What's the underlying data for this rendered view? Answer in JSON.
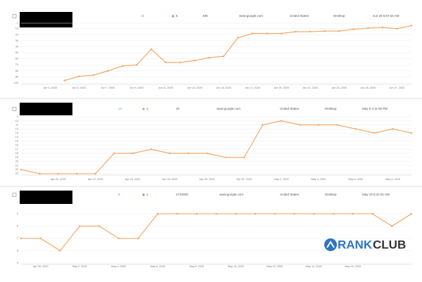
{
  "panels": [
    {
      "cells": [
        "13",
        "5",
        "480",
        "www.google.com",
        "United States",
        "Desktop",
        "Jun 28 6:57:54 AM"
      ]
    },
    {
      "cells": [
        "13",
        "1",
        "10",
        "www.google.com",
        "United States",
        "Desktop",
        "May 9 4:11:50 PM"
      ]
    },
    {
      "cells": [
        "8",
        "1",
        "2740000",
        "www.google.com",
        "United States",
        "Desktop",
        "May 19 5:41:51 AM"
      ]
    }
  ],
  "chart_data": [
    {
      "type": "line",
      "color": "#f5a15c",
      "grid": true,
      "categories": [
        null,
        null,
        "Jun 3, 2020",
        null,
        "Jun 5, 2020",
        null,
        "Jun 7, 2020",
        null,
        "Jun 9, 2020",
        null,
        "Jun 11, 2020",
        null,
        "Jun 13, 2020",
        null,
        "Jun 15, 2020",
        null,
        "Jun 17, 2020",
        null,
        "Jun 19, 2020",
        null,
        "Jun 21, 2020",
        null,
        "Jun 23, 2020",
        null,
        "Jun 25, 2020",
        null,
        "Jun 27, 2020",
        null
      ],
      "values": [
        null,
        null,
        null,
        96,
        89,
        87,
        80,
        72,
        70,
        44,
        66,
        66,
        63,
        58,
        56,
        25,
        18,
        18,
        18,
        15,
        15,
        14,
        14,
        11,
        9,
        8,
        10,
        5
      ],
      "ylim": [
        100,
        1
      ],
      "yticks": [
        1,
        10,
        20,
        30,
        40,
        50,
        60,
        70,
        80,
        90,
        100
      ]
    },
    {
      "type": "line",
      "color": "#f5a15c",
      "grid": true,
      "categories": [
        null,
        null,
        "Apr 20, 2020",
        null,
        "Apr 22, 2020",
        null,
        "Apr 24, 2020",
        null,
        "Apr 26, 2020",
        null,
        "Apr 28, 2020",
        null,
        "Apr 30, 2020",
        null,
        "May 2, 2020",
        null,
        "May 4, 2020",
        null,
        "May 6, 2020",
        null,
        "May 8, 2020",
        null
      ],
      "values": [
        22,
        23,
        23,
        23,
        23,
        18,
        18,
        17,
        18,
        18,
        18,
        19,
        19,
        11,
        10,
        11,
        11,
        11,
        12,
        13,
        12,
        13
      ],
      "ylim": [
        23,
        9
      ],
      "yticks": [
        9,
        10,
        11,
        12,
        13,
        14,
        15,
        16,
        17,
        18,
        19,
        20,
        21,
        22,
        23
      ]
    },
    {
      "type": "line",
      "color": "#f5a15c",
      "grid": true,
      "categories": [
        null,
        "Apr 30, 2020",
        null,
        "May 2, 2020",
        null,
        "May 4, 2020",
        null,
        "May 6, 2020",
        null,
        "May 8, 2020",
        null,
        "May 10, 2020",
        null,
        "May 12, 2020",
        null,
        "May 14, 2020",
        null,
        "May 16, 2020",
        null,
        null,
        null
      ],
      "values": [
        7,
        7,
        8,
        6,
        6,
        7,
        7,
        5,
        5,
        5,
        5,
        5,
        5,
        5,
        5,
        5,
        5,
        5,
        5,
        6,
        5
      ],
      "ylim": [
        9,
        5
      ],
      "yticks": [
        5,
        6,
        7,
        8,
        9
      ]
    }
  ],
  "logo": {
    "first": "RANK",
    "second": "CLUB"
  }
}
